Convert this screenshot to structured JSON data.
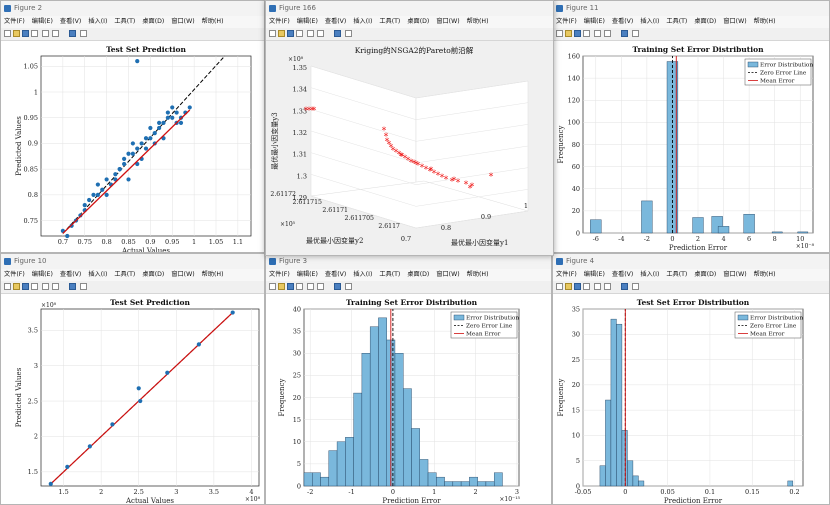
{
  "menu": [
    "文件(F)",
    "编辑(E)",
    "查看(V)",
    "插入(I)",
    "工具(T)",
    "桌面(D)",
    "窗口(W)",
    "帮助(H)"
  ],
  "windows": {
    "fig2": {
      "title": "Figure 2"
    },
    "fig166": {
      "title": "Figure 166"
    },
    "fig11": {
      "title": "Figure 11"
    },
    "fig10": {
      "title": "Figure 10"
    },
    "fig3": {
      "title": "Figure 3"
    },
    "fig4": {
      "title": "Figure 4"
    }
  },
  "legend_labels": [
    "Error Distribution",
    "Zero Error Line",
    "Mean Error"
  ],
  "colors": {
    "bar": "#7ab8dc",
    "bar_edge": "#1a3a5a",
    "scatter": "#1f6fb2",
    "fit": "#d01010",
    "star": "#ee1111"
  },
  "chart_data": [
    {
      "id": "fig2",
      "type": "scatter",
      "title": "Test Set Prediction",
      "xlabel": "Actual Values",
      "ylabel": "Predicted Values",
      "xlim": [
        0.65,
        1.13
      ],
      "ylim": [
        0.72,
        1.07
      ],
      "xticks": [
        "0.7",
        "0.75",
        "0.8",
        "0.85",
        "0.9",
        "0.95",
        "1",
        "1.05",
        "1.1"
      ],
      "yticks": [
        "0.75",
        "0.8",
        "0.85",
        "0.9",
        "0.95",
        "1",
        "1.05"
      ],
      "x": [
        0.7,
        0.71,
        0.72,
        0.73,
        0.74,
        0.75,
        0.76,
        0.77,
        0.78,
        0.79,
        0.8,
        0.81,
        0.82,
        0.83,
        0.84,
        0.85,
        0.86,
        0.87,
        0.88,
        0.89,
        0.9,
        0.91,
        0.92,
        0.93,
        0.94,
        0.95,
        0.96,
        0.97,
        0.98,
        0.99,
        0.75,
        0.78,
        0.82,
        0.86,
        0.88,
        0.9,
        0.93,
        0.95,
        0.97,
        0.8,
        0.84,
        0.87,
        0.91,
        0.94,
        0.83,
        0.89,
        0.92,
        0.96,
        0.85
      ],
      "y": [
        0.73,
        0.72,
        0.74,
        0.75,
        0.76,
        0.78,
        0.79,
        0.8,
        0.8,
        0.81,
        0.83,
        0.82,
        0.84,
        0.85,
        0.86,
        0.88,
        0.88,
        0.89,
        0.9,
        0.91,
        0.91,
        0.92,
        0.93,
        0.94,
        0.95,
        0.95,
        0.96,
        0.95,
        0.96,
        0.97,
        0.77,
        0.82,
        0.83,
        0.9,
        0.87,
        0.93,
        0.91,
        0.97,
        0.94,
        0.8,
        0.87,
        0.86,
        0.9,
        0.96,
        0.85,
        0.89,
        0.94,
        0.94,
        0.83
      ],
      "outlier": [
        0.87,
        1.06
      ],
      "fit": [
        [
          0.7,
          0.725
        ],
        [
          0.99,
          0.965
        ]
      ]
    },
    {
      "id": "fig166",
      "type": "scatter3d",
      "title": "Kriging的NSGA2的Pareto前沿解",
      "xlabel": "最优最小因变量y1",
      "ylabel": "最优最小因变量y2",
      "zlabel": "最优最小因变量y3",
      "zexp": "×10⁸",
      "yexp": "×10⁵",
      "zticks": [
        "1.29",
        "1.3",
        "1.31",
        "1.32",
        "1.33",
        "1.34",
        "1.35"
      ],
      "yticks": [
        "2.61172",
        "2.611715",
        "2.61171",
        "2.611705",
        "2.6117"
      ],
      "xticks": [
        "0.7",
        "0.8",
        "0.9",
        "1"
      ]
    },
    {
      "id": "fig11",
      "type": "bar",
      "title": "Training Set Error Distribution",
      "xlabel": "Prediction Error",
      "ylabel": "Frequency",
      "xexp": "×10⁻⁸",
      "xlim": [
        -7,
        11
      ],
      "ylim": [
        0,
        160
      ],
      "xticks": [
        "-6",
        "-4",
        "-2",
        "0",
        "2",
        "4",
        "6",
        "8",
        "10"
      ],
      "yticks": [
        "0",
        "20",
        "40",
        "60",
        "80",
        "100",
        "120",
        "140",
        "160"
      ],
      "bin_centers": [
        -6,
        -2,
        0,
        2,
        3.5,
        4,
        6
      ],
      "values": [
        12,
        29,
        155,
        14,
        15,
        6,
        17
      ],
      "mean": 0.3
    },
    {
      "id": "fig10",
      "type": "scatter",
      "title": "Test Set Prediction",
      "xlabel": "Actual Values",
      "ylabel": "Predicted Values",
      "xexp": "×10⁸",
      "yexp": "×10⁸",
      "xlim": [
        1.2,
        4.1
      ],
      "ylim": [
        1.3,
        3.8
      ],
      "xticks": [
        "1.5",
        "2",
        "2.5",
        "3",
        "3.5",
        "4"
      ],
      "yticks": [
        "1.5",
        "2",
        "2.5",
        "3",
        "3.5"
      ],
      "x": [
        1.33,
        1.55,
        1.85,
        2.15,
        2.5,
        2.52,
        2.88,
        3.3,
        3.75
      ],
      "y": [
        1.33,
        1.57,
        1.86,
        2.17,
        2.68,
        2.5,
        2.9,
        3.3,
        3.75
      ],
      "fit": [
        [
          1.33,
          1.33
        ],
        [
          3.75,
          3.75
        ]
      ]
    },
    {
      "id": "fig3",
      "type": "bar",
      "title": "Training Set Error Distribution",
      "xlabel": "Prediction Error",
      "ylabel": "Frequency",
      "xexp": "×10⁻¹⁵",
      "xlim": [
        -2.15,
        3.05
      ],
      "ylim": [
        0,
        40
      ],
      "xticks": [
        "-2",
        "-1",
        "0",
        "1",
        "2",
        "3"
      ],
      "yticks": [
        "0",
        "5",
        "10",
        "15",
        "20",
        "25",
        "30",
        "35",
        "40"
      ],
      "bin_left": -2.15,
      "bin_width": 0.2,
      "values": [
        3,
        3,
        2,
        8,
        10,
        11,
        21,
        30,
        36,
        38,
        33,
        30,
        22,
        13,
        6,
        3,
        2,
        1,
        1,
        1,
        2,
        1,
        1,
        3
      ],
      "mean": -0.05
    },
    {
      "id": "fig4",
      "type": "bar",
      "title": "Test Set Error Distribution",
      "xlabel": "Prediction Error",
      "ylabel": "Frequency",
      "xlim": [
        -0.05,
        0.21
      ],
      "ylim": [
        0,
        35
      ],
      "xticks": [
        "-0.05",
        "0",
        "0.05",
        "0.1",
        "0.15",
        "0.2"
      ],
      "yticks": [
        "0",
        "5",
        "10",
        "15",
        "20",
        "25",
        "30",
        "35"
      ],
      "bin_left": -0.03,
      "bin_width": 0.0065,
      "values": [
        4,
        17,
        33,
        32,
        11,
        5,
        2,
        1
      ],
      "extra_bar": [
        0.195,
        1
      ],
      "mean": 0.0
    }
  ]
}
